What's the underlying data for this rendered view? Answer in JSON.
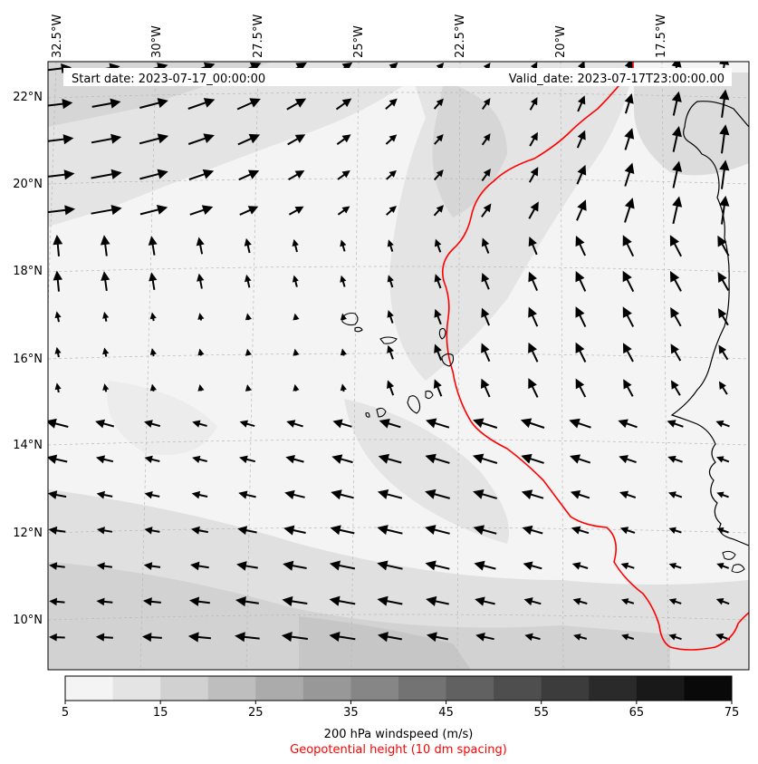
{
  "header": {
    "start_date": "Start date: 2023-07-17_00:00:00",
    "valid_date": "Valid_date: 2023-07-17T23:00:00.00"
  },
  "lon_labels": [
    "32.5°W",
    "30°W",
    "27.5°W",
    "25°W",
    "22.5°W",
    "20°W",
    "17.5°W"
  ],
  "lat_labels": [
    "22°N",
    "20°N",
    "18°N",
    "16°N",
    "14°N",
    "12°N",
    "10°N"
  ],
  "colorbar": {
    "ticks": [
      "5",
      "15",
      "25",
      "35",
      "45",
      "55",
      "65",
      "75"
    ],
    "label": "200 hPa windspeed (m/s)",
    "sublabel": "Geopotential height (10 dm spacing)",
    "levels": [
      5,
      10,
      15,
      20,
      25,
      30,
      35,
      40,
      45,
      50,
      55,
      60,
      65,
      70,
      75
    ],
    "colors": [
      "#f4f4f4",
      "#e4e4e4",
      "#d1d1d1",
      "#bebebe",
      "#ababab",
      "#989898",
      "#868686",
      "#737373",
      "#616161",
      "#4e4e4e",
      "#3c3c3c",
      "#2a2a2a",
      "#191919",
      "#090909"
    ]
  },
  "colors": {
    "contour": "#ff0000",
    "coast": "#000000",
    "sublabel": "#ff0000"
  }
}
